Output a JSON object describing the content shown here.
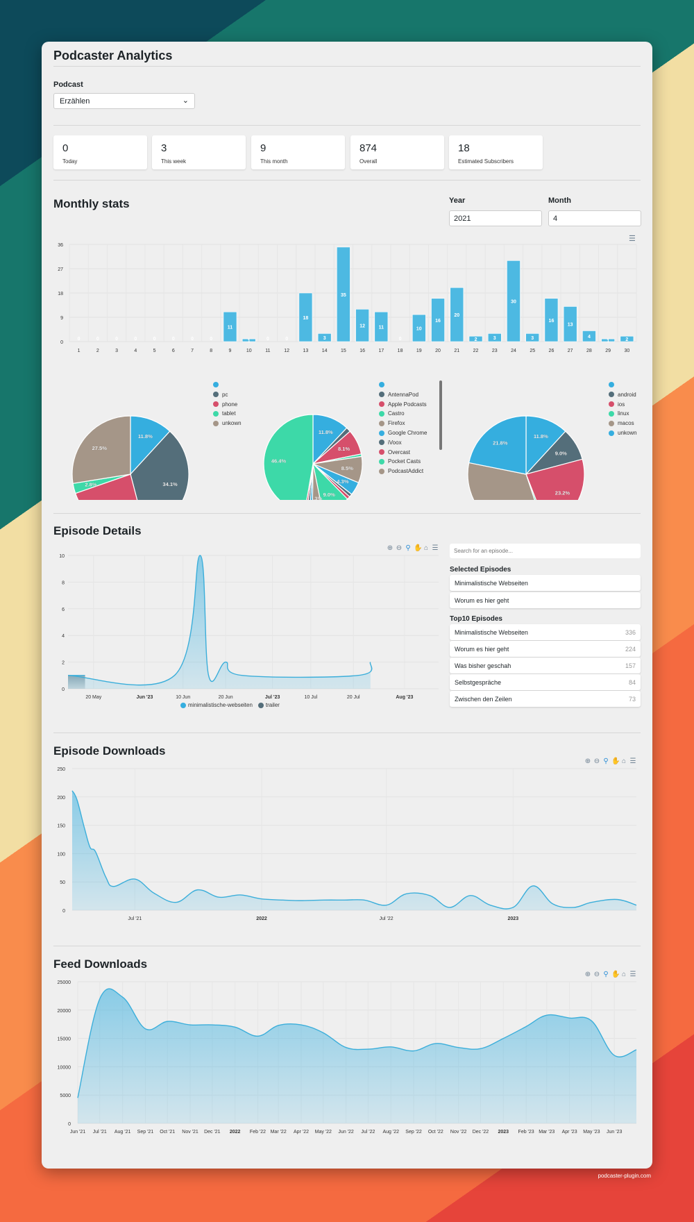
{
  "header": {
    "title": "Podcaster Analytics"
  },
  "podcast": {
    "label": "Podcast",
    "selected": "Erzählen"
  },
  "stats": [
    {
      "value": "0",
      "label": "Today"
    },
    {
      "value": "3",
      "label": "This week"
    },
    {
      "value": "9",
      "label": "This month"
    },
    {
      "value": "874",
      "label": "Overall"
    },
    {
      "value": "18",
      "label": "Estimated Subscribers"
    }
  ],
  "monthly": {
    "title": "Monthly stats",
    "year_label": "Year",
    "year_value": "2021",
    "month_label": "Month",
    "month_value": "4"
  },
  "colors": {
    "palette": [
      "#35AEDF",
      "#546E7A",
      "#D64F6B",
      "#3DD9A8",
      "#A59688"
    ],
    "line": "#3BAEDA",
    "background": "#efefef"
  },
  "chart_data": [
    {
      "type": "bar",
      "title": "",
      "categories": [
        "1",
        "2",
        "3",
        "4",
        "5",
        "6",
        "7",
        "8",
        "9",
        "10",
        "11",
        "12",
        "13",
        "14",
        "15",
        "16",
        "17",
        "18",
        "19",
        "20",
        "21",
        "22",
        "23",
        "24",
        "25",
        "26",
        "27",
        "28",
        "29",
        "30"
      ],
      "values": [
        0,
        0,
        0,
        0,
        0,
        0,
        0,
        0,
        11,
        1,
        0,
        0,
        18,
        3,
        35,
        12,
        11,
        0,
        10,
        16,
        20,
        2,
        3,
        30,
        3,
        16,
        13,
        4,
        1,
        2
      ],
      "yticks": [
        "0",
        "9",
        "18",
        "27",
        "36"
      ],
      "ylim": [
        0,
        36
      ],
      "grid": true,
      "data_labels": true
    },
    {
      "type": "pie",
      "labels": [
        "",
        "pc",
        "phone",
        "tablet",
        "unkown"
      ],
      "values": [
        11.8,
        34.1,
        23.7,
        2.8,
        27.5
      ]
    },
    {
      "type": "pie",
      "labels": [
        "",
        "AntennaPod",
        "Apple Podcasts",
        "Castro",
        "Firefox",
        "Google Chrome",
        "iVoox",
        "Overcast",
        "Pocket Casts",
        "PodcastAddict",
        "",
        "",
        "",
        ""
      ],
      "values": [
        11.8,
        1.5,
        8.1,
        0.8,
        8.5,
        4.3,
        1.0,
        1.0,
        9.0,
        3.3,
        0.9,
        0.9,
        0.7,
        46.4
      ],
      "legend_scrollable": true
    },
    {
      "type": "pie",
      "labels": [
        "",
        "android",
        "ios",
        "linux",
        "macos",
        "unkown"
      ],
      "values": [
        11.8,
        9.0,
        23.2,
        0.8,
        33.2,
        21.8
      ]
    },
    {
      "type": "area",
      "title": "",
      "xlim": [
        "2023-05-14",
        "2023-08-09"
      ],
      "ylim": [
        0,
        10
      ],
      "yticks": [
        "0",
        "2",
        "4",
        "6",
        "8",
        "10"
      ],
      "xticks": [
        {
          "date": "2023-05-20",
          "label": "20 May"
        },
        {
          "date": "2023-06-01",
          "label": "Jun '23",
          "bold": true
        },
        {
          "date": "2023-06-10",
          "label": "10 Jun"
        },
        {
          "date": "2023-06-20",
          "label": "20 Jun"
        },
        {
          "date": "2023-07-01",
          "label": "Jul '23",
          "bold": true
        },
        {
          "date": "2023-07-10",
          "label": "10 Jul"
        },
        {
          "date": "2023-07-20",
          "label": "20 Jul"
        },
        {
          "date": "2023-08-01",
          "label": "Aug '23",
          "bold": true
        }
      ],
      "series": [
        {
          "name": "minimalistische-webseiten",
          "points": [
            [
              "2023-05-14",
              1
            ],
            [
              "2023-06-08",
              1
            ],
            [
              "2023-06-14",
              10
            ],
            [
              "2023-06-16",
              1
            ],
            [
              "2023-06-20",
              2
            ],
            [
              "2023-06-24",
              1
            ],
            [
              "2023-07-21",
              1
            ],
            [
              "2023-07-24",
              2
            ]
          ]
        },
        {
          "name": "trailer",
          "points": [
            [
              "2023-05-14",
              1
            ],
            [
              "2023-05-18",
              1
            ]
          ]
        }
      ],
      "legend": "bottom"
    },
    {
      "type": "area",
      "title": "",
      "xlim": [
        "2021-04-01",
        "2023-06-29"
      ],
      "ylim": [
        0,
        250
      ],
      "yticks": [
        "0",
        "50",
        "100",
        "150",
        "200",
        "250"
      ],
      "xticks": [
        {
          "date": "2021-07-01",
          "label": "Jul '21"
        },
        {
          "date": "2022-01-01",
          "label": "2022",
          "bold": true
        },
        {
          "date": "2022-07-01",
          "label": "Jul '22"
        },
        {
          "date": "2023-01-01",
          "label": "2023",
          "bold": true
        }
      ],
      "series": [
        {
          "points": [
            [
              "2021-04-01",
              211
            ],
            [
              "2021-04-08",
              195
            ],
            [
              "2021-04-19",
              144
            ],
            [
              "2021-04-27",
              111
            ],
            [
              "2021-05-05",
              103
            ],
            [
              "2021-05-20",
              58
            ],
            [
              "2021-05-31",
              42
            ],
            [
              "2021-07-01",
              55
            ],
            [
              "2021-07-29",
              30
            ],
            [
              "2021-08-30",
              14
            ],
            [
              "2021-09-30",
              36
            ],
            [
              "2021-10-31",
              23
            ],
            [
              "2021-12-01",
              27
            ],
            [
              "2022-01-01",
              20
            ],
            [
              "2022-02-01",
              18
            ],
            [
              "2022-03-01",
              17
            ],
            [
              "2022-04-01",
              18
            ],
            [
              "2022-05-01",
              18
            ],
            [
              "2022-05-30",
              18
            ],
            [
              "2022-07-01",
              9
            ],
            [
              "2022-07-30",
              29
            ],
            [
              "2022-09-02",
              26
            ],
            [
              "2022-10-01",
              5
            ],
            [
              "2022-10-31",
              26
            ],
            [
              "2022-11-29",
              9
            ],
            [
              "2023-01-01",
              5
            ],
            [
              "2023-01-30",
              43
            ],
            [
              "2023-02-28",
              11
            ],
            [
              "2023-03-30",
              5
            ],
            [
              "2023-04-25",
              14
            ],
            [
              "2023-06-01",
              19
            ],
            [
              "2023-06-29",
              9
            ]
          ]
        }
      ]
    },
    {
      "type": "area",
      "title": "",
      "xlim": [
        "2021-06-01",
        "2023-07-01"
      ],
      "ylim": [
        0,
        25000
      ],
      "yticks": [
        "0",
        "5000",
        "10000",
        "15000",
        "20000",
        "25000"
      ],
      "xticks": [
        {
          "date": "2021-06-01",
          "label": "Jun '21"
        },
        {
          "date": "2021-07-01",
          "label": "Jul '21"
        },
        {
          "date": "2021-08-01",
          "label": "Aug '21"
        },
        {
          "date": "2021-09-01",
          "label": "Sep '21"
        },
        {
          "date": "2021-10-01",
          "label": "Oct '21"
        },
        {
          "date": "2021-11-01",
          "label": "Nov '21"
        },
        {
          "date": "2021-12-01",
          "label": "Dec '21"
        },
        {
          "date": "2022-01-01",
          "label": "2022",
          "bold": true
        },
        {
          "date": "2022-02-01",
          "label": "Feb '22"
        },
        {
          "date": "2022-03-01",
          "label": "Mar '22"
        },
        {
          "date": "2022-04-01",
          "label": "Apr '22"
        },
        {
          "date": "2022-05-01",
          "label": "May '22"
        },
        {
          "date": "2022-06-01",
          "label": "Jun '22"
        },
        {
          "date": "2022-07-01",
          "label": "Jul '22"
        },
        {
          "date": "2022-08-01",
          "label": "Aug '22"
        },
        {
          "date": "2022-09-01",
          "label": "Sep '22"
        },
        {
          "date": "2022-10-01",
          "label": "Oct '22"
        },
        {
          "date": "2022-11-01",
          "label": "Nov '22"
        },
        {
          "date": "2022-12-01",
          "label": "Dec '22"
        },
        {
          "date": "2023-01-01",
          "label": "2023",
          "bold": true
        },
        {
          "date": "2023-02-01",
          "label": "Feb '23"
        },
        {
          "date": "2023-03-01",
          "label": "Mar '23"
        },
        {
          "date": "2023-04-01",
          "label": "Apr '23"
        },
        {
          "date": "2023-05-01",
          "label": "May '23"
        },
        {
          "date": "2023-06-01",
          "label": "Jun '23"
        }
      ],
      "series": [
        {
          "points": [
            [
              "2021-06-01",
              4500
            ],
            [
              "2021-07-01",
              22000
            ],
            [
              "2021-08-01",
              22300
            ],
            [
              "2021-09-01",
              16700
            ],
            [
              "2021-10-01",
              18000
            ],
            [
              "2021-11-01",
              17400
            ],
            [
              "2021-12-01",
              17400
            ],
            [
              "2022-01-01",
              17000
            ],
            [
              "2022-02-01",
              15400
            ],
            [
              "2022-03-01",
              17300
            ],
            [
              "2022-04-01",
              17400
            ],
            [
              "2022-05-01",
              16000
            ],
            [
              "2022-06-01",
              13400
            ],
            [
              "2022-07-01",
              13100
            ],
            [
              "2022-08-01",
              13500
            ],
            [
              "2022-09-01",
              12800
            ],
            [
              "2022-10-01",
              14100
            ],
            [
              "2022-11-01",
              13400
            ],
            [
              "2022-12-01",
              13200
            ],
            [
              "2023-01-01",
              15000
            ],
            [
              "2023-02-01",
              17100
            ],
            [
              "2023-03-01",
              19100
            ],
            [
              "2023-04-01",
              18600
            ],
            [
              "2023-05-01",
              18100
            ],
            [
              "2023-06-01",
              12000
            ],
            [
              "2023-07-01",
              13000
            ]
          ]
        }
      ]
    }
  ],
  "episodes": {
    "title": "Episode Details",
    "search_placeholder": "Search for an episode...",
    "selected_title": "Selected Episodes",
    "selected": [
      "Minimalistische Webseiten",
      "Worum es hier geht"
    ],
    "top_title": "Top10 Episodes",
    "top": [
      {
        "name": "Minimalistische Webseiten",
        "count": "336"
      },
      {
        "name": "Worum es hier geht",
        "count": "224"
      },
      {
        "name": "Was bisher geschah",
        "count": "157"
      },
      {
        "name": "Selbstgespräche",
        "count": "84"
      },
      {
        "name": "Zwischen den Zeilen",
        "count": "73"
      }
    ]
  },
  "episode_downloads": {
    "title": "Episode Downloads"
  },
  "feed_downloads": {
    "title": "Feed Downloads"
  },
  "footer": "podcaster-plugin.com"
}
